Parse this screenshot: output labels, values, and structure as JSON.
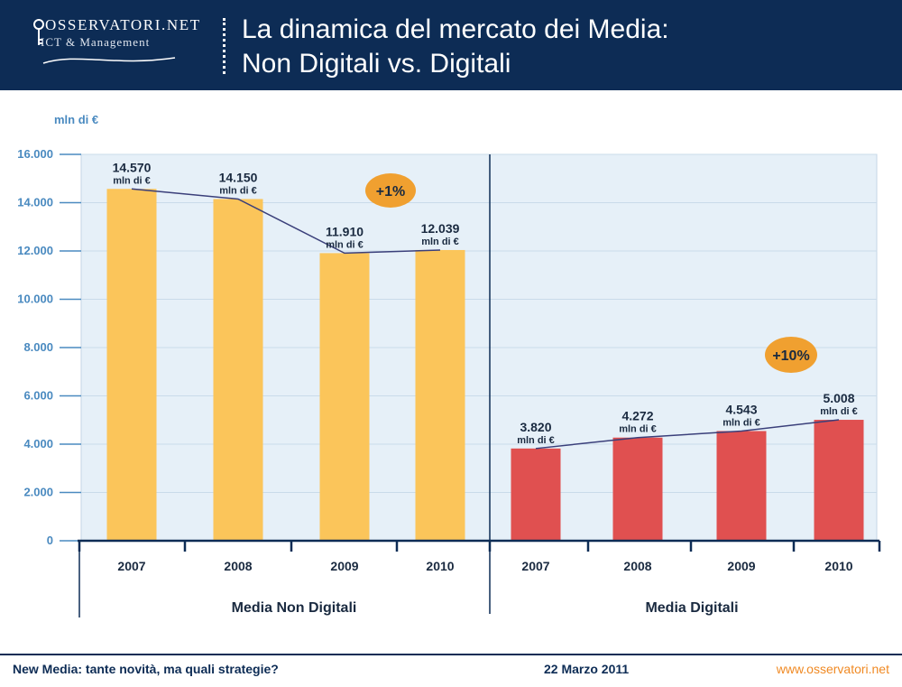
{
  "header": {
    "logo_main": "OSSERVATORI.NET",
    "logo_sub": "ICT & Management",
    "title_line1": "La dinamica del mercato dei Media:",
    "title_line2": "Non Digitali vs. Digitali"
  },
  "colors": {
    "header_bg": "#0d2c55",
    "plot_bg": "#e6f0f8",
    "non_digital_bar": "#fbc55a",
    "digital_bar": "#e05050",
    "growth_badge": "#f0a030",
    "axis_text": "#4a8ac0"
  },
  "chart_data": {
    "type": "bar",
    "ylabel": "mln di €",
    "ylim": [
      0,
      16000
    ],
    "yticks": [
      "0",
      "2.000",
      "4.000",
      "6.000",
      "8.000",
      "10.000",
      "12.000",
      "14.000",
      "16.000"
    ],
    "value_unit": "mln di €",
    "groups": [
      {
        "name": "Media Non Digitali",
        "categories": [
          "2007",
          "2008",
          "2009",
          "2010"
        ],
        "values": [
          14570,
          14150,
          11910,
          12039
        ],
        "labels": [
          "14.570",
          "14.150",
          "11.910",
          "12.039"
        ],
        "growth": "+1%"
      },
      {
        "name": "Media Digitali",
        "categories": [
          "2007",
          "2008",
          "2009",
          "2010"
        ],
        "values": [
          3820,
          4272,
          4543,
          5008
        ],
        "labels": [
          "3.820",
          "4.272",
          "4.543",
          "5.008"
        ],
        "growth": "+10%"
      }
    ]
  },
  "footer": {
    "left": "New Media: tante novità, ma quali strategie?",
    "center": "22 Marzo 2011",
    "right": "www.osservatori.net"
  }
}
